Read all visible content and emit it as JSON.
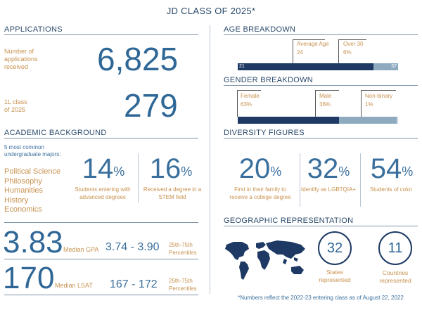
{
  "title": "JD CLASS OF 2025*",
  "applications": {
    "heading": "APPLICATIONS",
    "num_apps_label_1": "Number of",
    "num_apps_label_2": "applications",
    "num_apps_label_3": "received",
    "num_apps_value": "6,825",
    "class_label_1": "1L class",
    "class_label_2": "of 2025",
    "class_value": "279"
  },
  "academic": {
    "heading": "ACADEMIC BACKGROUND",
    "majors_label_1": "5 most common",
    "majors_label_2": "undergraduate majors:",
    "majors": [
      "Political Science",
      "Philosophy",
      "Humanities",
      "History",
      "Economics"
    ],
    "stat1_value": "14",
    "stat1_unit": "%",
    "stat1_caption_1": "Students entering with",
    "stat1_caption_2": "advanced degrees",
    "stat2_value": "16",
    "stat2_unit": "%",
    "stat2_caption_1": "Received a degree in a",
    "stat2_caption_2": "STEM field"
  },
  "gpa": {
    "value": "3.83",
    "label": "Median GPA",
    "range": "3.74 - 3.90",
    "pct_label_1": "25th-75th",
    "pct_label_2": "Percentiles"
  },
  "lsat": {
    "value": "170",
    "label": "Median LSAT",
    "range": "167 - 172",
    "pct_label_1": "25th-75th",
    "pct_label_2": "Percentiles"
  },
  "age": {
    "heading": "AGE BREAKDOWN",
    "avg_label": "Average Age",
    "avg_value": "24",
    "over_label": "Over 30",
    "over_value": "6%",
    "bar_left": "21",
    "bar_right": "37",
    "avg_fraction": 0.1875
  },
  "gender": {
    "heading": "GENDER BREAKDOWN",
    "female_label": "Female",
    "female_value": "63%",
    "male_label": "Male",
    "male_value": "36%",
    "nb_label": "Non-binary",
    "nb_value": "1%",
    "female_share": 0.63,
    "male_share": 0.36,
    "nb_share": 0.01
  },
  "diversity": {
    "heading": "DIVERSITY FIGURES",
    "stats": [
      {
        "value": "20",
        "unit": "%",
        "caption_1": "First in their family to",
        "caption_2": "receive a college degree"
      },
      {
        "value": "32",
        "unit": "%",
        "caption_1": "Identify as LGBTQIA+",
        "caption_2": ""
      },
      {
        "value": "54",
        "unit": "%",
        "caption_1": "Students of color",
        "caption_2": ""
      }
    ]
  },
  "geo": {
    "heading": "GEOGRAPHIC REPRESENTATION",
    "states_value": "32",
    "states_label_1": "States",
    "states_label_2": "represented",
    "countries_value": "11",
    "countries_label_1": "Countries",
    "countries_label_2": "represented"
  },
  "footnote": "*Numbers reflect the 2022-23 entering class as of August 22, 2022",
  "colors": {
    "navy": "#1e3a64",
    "light_blue": "#8eaabf",
    "gold": "#c8924f",
    "text_blue": "#2f6797"
  }
}
